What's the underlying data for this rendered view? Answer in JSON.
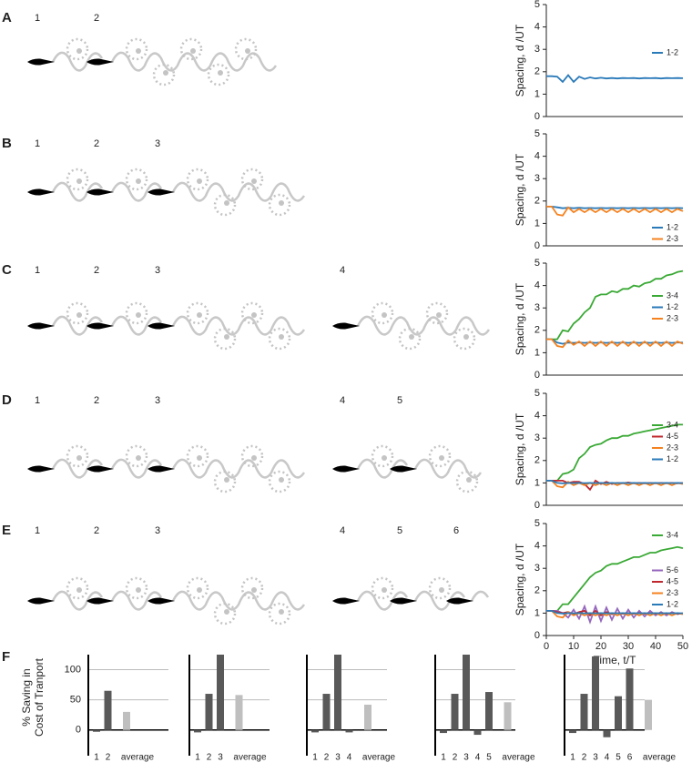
{
  "panels": [
    {
      "letter": "A",
      "foils": [
        "1",
        "2"
      ]
    },
    {
      "letter": "B",
      "foils": [
        "1",
        "2",
        "3"
      ]
    },
    {
      "letter": "C",
      "foils": [
        "1",
        "2",
        "3",
        "4"
      ]
    },
    {
      "letter": "D",
      "foils": [
        "1",
        "2",
        "3",
        "4",
        "5"
      ]
    },
    {
      "letter": "E",
      "foils": [
        "1",
        "2",
        "3",
        "4",
        "5",
        "6"
      ]
    },
    {
      "letter": "F"
    }
  ],
  "chart_data": [
    {
      "type": "line",
      "ylabel": "Spacing, d /UT",
      "xlim": [
        0,
        50
      ],
      "ylim": [
        0,
        5
      ],
      "yticks": [
        0,
        1,
        2,
        3,
        4,
        5
      ],
      "legend": "right",
      "x": [
        0,
        2,
        4,
        6,
        8,
        10,
        12,
        14,
        16,
        18,
        20,
        22,
        24,
        26,
        28,
        30,
        32,
        34,
        36,
        38,
        40,
        42,
        44,
        46,
        48,
        50
      ],
      "series": [
        {
          "name": "1-2",
          "color": "#2a7ab9",
          "values": [
            1.8,
            1.8,
            1.78,
            1.55,
            1.85,
            1.55,
            1.78,
            1.68,
            1.75,
            1.7,
            1.73,
            1.7,
            1.72,
            1.7,
            1.72,
            1.71,
            1.72,
            1.7,
            1.72,
            1.71,
            1.72,
            1.7,
            1.72,
            1.71,
            1.72,
            1.71
          ]
        }
      ]
    },
    {
      "type": "line",
      "ylabel": "Spacing, d /UT",
      "xlim": [
        0,
        50
      ],
      "ylim": [
        0,
        5
      ],
      "yticks": [
        0,
        1,
        2,
        3,
        4,
        5
      ],
      "legend": "right",
      "x": [
        0,
        2,
        4,
        6,
        8,
        10,
        12,
        14,
        16,
        18,
        20,
        22,
        24,
        26,
        28,
        30,
        32,
        34,
        36,
        38,
        40,
        42,
        44,
        46,
        48,
        50
      ],
      "series": [
        {
          "name": "1-2",
          "color": "#2a7ab9",
          "values": [
            1.75,
            1.75,
            1.72,
            1.68,
            1.7,
            1.68,
            1.7,
            1.68,
            1.69,
            1.68,
            1.69,
            1.68,
            1.69,
            1.68,
            1.69,
            1.68,
            1.69,
            1.68,
            1.69,
            1.68,
            1.69,
            1.68,
            1.69,
            1.68,
            1.69,
            1.68
          ]
        },
        {
          "name": "2-3",
          "color": "#f5821f",
          "values": [
            1.75,
            1.75,
            1.4,
            1.35,
            1.72,
            1.5,
            1.65,
            1.5,
            1.65,
            1.5,
            1.65,
            1.5,
            1.65,
            1.5,
            1.65,
            1.5,
            1.65,
            1.5,
            1.65,
            1.5,
            1.65,
            1.5,
            1.65,
            1.5,
            1.65,
            1.55
          ]
        }
      ]
    },
    {
      "type": "line",
      "ylabel": "Spacing, d /UT",
      "xlim": [
        0,
        50
      ],
      "ylim": [
        0,
        5
      ],
      "yticks": [
        0,
        1,
        2,
        3,
        4,
        5
      ],
      "legend": "right",
      "x": [
        0,
        2,
        4,
        6,
        8,
        10,
        12,
        14,
        16,
        18,
        20,
        22,
        24,
        26,
        28,
        30,
        32,
        34,
        36,
        38,
        40,
        42,
        44,
        46,
        48,
        50
      ],
      "series": [
        {
          "name": "3-4",
          "color": "#3aa935",
          "values": [
            1.6,
            1.6,
            1.6,
            2.0,
            1.95,
            2.3,
            2.5,
            2.8,
            3.0,
            3.5,
            3.6,
            3.6,
            3.75,
            3.7,
            3.85,
            3.85,
            4.0,
            3.95,
            4.1,
            4.15,
            4.3,
            4.3,
            4.45,
            4.5,
            4.6,
            4.65
          ]
        },
        {
          "name": "1-2",
          "color": "#2a7ab9",
          "values": [
            1.6,
            1.6,
            1.45,
            1.4,
            1.45,
            1.44,
            1.46,
            1.44,
            1.46,
            1.44,
            1.46,
            1.44,
            1.46,
            1.44,
            1.46,
            1.44,
            1.46,
            1.44,
            1.46,
            1.44,
            1.46,
            1.44,
            1.46,
            1.44,
            1.46,
            1.45
          ]
        },
        {
          "name": "2-3",
          "color": "#f5821f",
          "values": [
            1.6,
            1.6,
            1.3,
            1.25,
            1.55,
            1.35,
            1.5,
            1.3,
            1.5,
            1.3,
            1.5,
            1.3,
            1.5,
            1.3,
            1.5,
            1.3,
            1.5,
            1.3,
            1.5,
            1.3,
            1.5,
            1.3,
            1.5,
            1.3,
            1.5,
            1.4
          ]
        }
      ]
    },
    {
      "type": "line",
      "ylabel": "Spacing, d /UT",
      "xlim": [
        0,
        50
      ],
      "ylim": [
        0,
        5
      ],
      "yticks": [
        0,
        1,
        2,
        3,
        4,
        5
      ],
      "legend": "right",
      "x": [
        0,
        2,
        4,
        6,
        8,
        10,
        12,
        14,
        16,
        18,
        20,
        22,
        24,
        26,
        28,
        30,
        32,
        34,
        36,
        38,
        40,
        42,
        44,
        46,
        48,
        50
      ],
      "series": [
        {
          "name": "3-4",
          "color": "#3aa935",
          "values": [
            1.1,
            1.1,
            1.1,
            1.4,
            1.45,
            1.6,
            2.1,
            2.3,
            2.6,
            2.7,
            2.75,
            2.9,
            3.0,
            3.0,
            3.1,
            3.1,
            3.2,
            3.25,
            3.3,
            3.35,
            3.4,
            3.45,
            3.5,
            3.55,
            3.6,
            3.6
          ]
        },
        {
          "name": "4-5",
          "color": "#c0282d",
          "values": [
            1.1,
            1.1,
            1.1,
            1.1,
            1.0,
            1.05,
            1.05,
            0.95,
            0.7,
            1.1,
            0.95,
            1.05,
            0.95,
            1.0,
            0.98,
            1.02,
            0.98,
            1.0,
            0.98,
            1.0,
            0.98,
            1.0,
            0.98,
            1.0,
            0.98,
            1.0
          ]
        },
        {
          "name": "2-3",
          "color": "#f5821f",
          "values": [
            1.1,
            1.1,
            0.85,
            0.8,
            1.05,
            0.9,
            1.0,
            0.9,
            1.0,
            0.9,
            1.0,
            0.9,
            1.0,
            0.9,
            1.0,
            0.9,
            1.0,
            0.9,
            1.0,
            0.9,
            1.0,
            0.9,
            1.0,
            0.9,
            1.0,
            0.95
          ]
        },
        {
          "name": "1-2",
          "color": "#2a7ab9",
          "values": [
            1.1,
            1.1,
            1.0,
            0.98,
            1.0,
            0.99,
            1.0,
            0.99,
            1.0,
            0.99,
            1.0,
            0.99,
            1.0,
            0.99,
            1.0,
            0.99,
            1.0,
            0.99,
            1.0,
            0.99,
            1.0,
            0.99,
            1.0,
            0.99,
            1.0,
            0.99
          ]
        }
      ]
    },
    {
      "type": "line",
      "ylabel": "Spacing, d /UT",
      "xlabel": "Time, t/T",
      "xlim": [
        0,
        50
      ],
      "ylim": [
        0,
        5
      ],
      "xticks": [
        0,
        10,
        20,
        30,
        40,
        50
      ],
      "yticks": [
        0,
        1,
        2,
        3,
        4,
        5
      ],
      "legend": "right",
      "x": [
        0,
        2,
        4,
        6,
        8,
        10,
        12,
        14,
        16,
        18,
        20,
        22,
        24,
        26,
        28,
        30,
        32,
        34,
        36,
        38,
        40,
        42,
        44,
        46,
        48,
        50
      ],
      "series": [
        {
          "name": "3-4",
          "color": "#3aa935",
          "values": [
            1.1,
            1.1,
            1.1,
            1.4,
            1.4,
            1.7,
            2.0,
            2.3,
            2.6,
            2.8,
            2.9,
            3.1,
            3.2,
            3.2,
            3.3,
            3.4,
            3.5,
            3.5,
            3.6,
            3.7,
            3.7,
            3.8,
            3.85,
            3.9,
            3.95,
            3.9
          ]
        },
        {
          "name": "5-6",
          "color": "#9467bd",
          "values": [
            1.1,
            1.1,
            1.1,
            1.0,
            0.8,
            1.15,
            0.75,
            1.3,
            0.6,
            1.3,
            0.65,
            1.25,
            0.7,
            1.2,
            0.75,
            1.15,
            0.8,
            1.1,
            0.85,
            1.1,
            0.9,
            1.05,
            0.9,
            1.05,
            0.95,
            1.0
          ]
        },
        {
          "name": "4-5",
          "color": "#c0282d",
          "values": [
            1.1,
            1.1,
            1.05,
            1.0,
            1.05,
            0.95,
            1.05,
            1.1,
            0.9,
            1.1,
            0.9,
            1.05,
            0.95,
            1.0,
            0.97,
            1.0,
            0.97,
            1.0,
            0.97,
            1.0,
            0.97,
            1.0,
            0.97,
            1.0,
            0.97,
            0.98
          ]
        },
        {
          "name": "2-3",
          "color": "#f5821f",
          "values": [
            1.1,
            1.1,
            0.85,
            0.8,
            1.05,
            0.9,
            1.0,
            0.9,
            1.0,
            0.9,
            1.0,
            0.9,
            1.0,
            0.9,
            1.0,
            0.9,
            1.0,
            0.9,
            1.0,
            0.9,
            1.0,
            0.9,
            1.0,
            0.9,
            1.0,
            0.95
          ]
        },
        {
          "name": "1-2",
          "color": "#2a7ab9",
          "values": [
            1.1,
            1.1,
            1.0,
            0.98,
            1.0,
            0.99,
            1.0,
            0.99,
            1.0,
            0.99,
            1.0,
            0.99,
            1.0,
            0.99,
            1.0,
            0.99,
            1.0,
            0.99,
            1.0,
            0.99,
            1.0,
            0.99,
            1.0,
            0.99,
            1.0,
            0.99
          ]
        }
      ]
    },
    {
      "type": "bar",
      "ylabel_lines": [
        "% Saving in",
        "Cost of Tranport"
      ],
      "ylim": [
        -20,
        125
      ],
      "yticks": [
        0,
        50,
        100
      ],
      "show_tick_labels": true,
      "grid": true,
      "categories": [
        "1",
        "2",
        "average"
      ],
      "values": [
        -3,
        65,
        30
      ],
      "colors": [
        "#595959",
        "#595959",
        "#bfbfbf"
      ]
    },
    {
      "type": "bar",
      "ylim": [
        -20,
        125
      ],
      "yticks": [
        0,
        50,
        100
      ],
      "show_tick_labels": false,
      "grid": true,
      "categories": [
        "1",
        "2",
        "3",
        "average"
      ],
      "values": [
        -4,
        60,
        125,
        58
      ],
      "colors": [
        "#595959",
        "#595959",
        "#595959",
        "#bfbfbf"
      ]
    },
    {
      "type": "bar",
      "ylim": [
        -20,
        125
      ],
      "yticks": [
        0,
        50,
        100
      ],
      "show_tick_labels": false,
      "grid": true,
      "categories": [
        "1",
        "2",
        "3",
        "4",
        "average"
      ],
      "values": [
        -4,
        60,
        125,
        -4,
        42
      ],
      "colors": [
        "#595959",
        "#595959",
        "#595959",
        "#595959",
        "#bfbfbf"
      ]
    },
    {
      "type": "bar",
      "ylim": [
        -20,
        125
      ],
      "yticks": [
        0,
        50,
        100
      ],
      "show_tick_labels": false,
      "grid": true,
      "categories": [
        "1",
        "2",
        "3",
        "4",
        "5",
        "average"
      ],
      "values": [
        -5,
        60,
        125,
        -8,
        63,
        46
      ],
      "colors": [
        "#595959",
        "#595959",
        "#595959",
        "#595959",
        "#595959",
        "#bfbfbf"
      ]
    },
    {
      "type": "bar",
      "ylim": [
        -20,
        125
      ],
      "yticks": [
        0,
        50,
        100
      ],
      "show_tick_labels": false,
      "grid": true,
      "categories": [
        "1",
        "2",
        "3",
        "4",
        "5",
        "6",
        "average"
      ],
      "values": [
        -5,
        60,
        122,
        -12,
        56,
        102,
        50
      ],
      "colors": [
        "#595959",
        "#595959",
        "#595959",
        "#595959",
        "#595959",
        "#595959",
        "#bfbfbf"
      ]
    }
  ]
}
